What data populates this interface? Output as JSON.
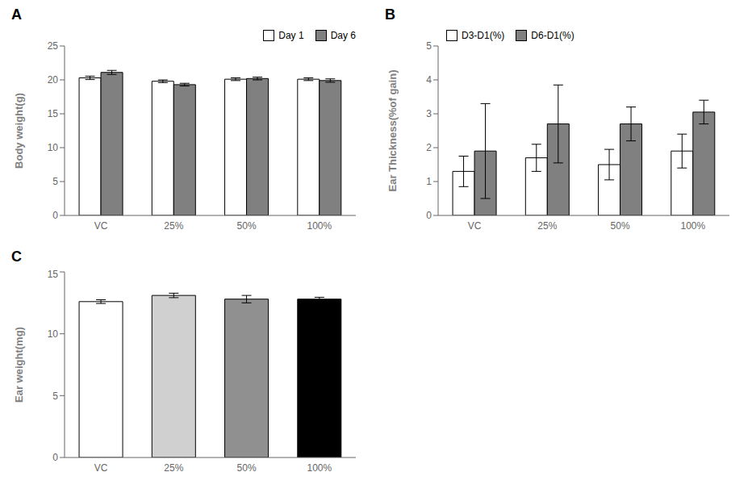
{
  "chart_data": [
    {
      "type": "bar",
      "title": "A",
      "categories": [
        "VC",
        "25%",
        "50%",
        "100%"
      ],
      "series": [
        {
          "name": "Day 1",
          "color": "white",
          "values": [
            20.3,
            19.8,
            20.1,
            20.1
          ],
          "errors": [
            0.25,
            0.2,
            0.2,
            0.2
          ]
        },
        {
          "name": "Day 6",
          "color": "#808080",
          "values": [
            21.1,
            19.3,
            20.2,
            19.9
          ],
          "errors": [
            0.3,
            0.2,
            0.2,
            0.25
          ]
        }
      ],
      "ylabel": "Body weight(g)",
      "ylim": [
        0,
        25
      ],
      "yticks": [
        0,
        5,
        10,
        15,
        20,
        25
      ],
      "legend": "upper right"
    },
    {
      "type": "bar",
      "title": "B",
      "categories": [
        "VC",
        "25%",
        "50%",
        "100%"
      ],
      "series": [
        {
          "name": "D3-D1(%)",
          "color": "white",
          "values": [
            1.3,
            1.7,
            1.5,
            1.9
          ],
          "errors": [
            0.45,
            0.4,
            0.45,
            0.5
          ]
        },
        {
          "name": "D6-D1(%)",
          "color": "#808080",
          "values": [
            1.9,
            2.7,
            2.7,
            3.05
          ],
          "errors": [
            1.4,
            1.15,
            0.5,
            0.35
          ]
        }
      ],
      "ylabel": "Ear Thickness(%of gain)",
      "ylim": [
        0,
        5
      ],
      "yticks": [
        0,
        1,
        2,
        3,
        4,
        5
      ],
      "legend": "upper left"
    },
    {
      "type": "bar",
      "title": "C",
      "categories": [
        "VC",
        "25%",
        "50%",
        "100%"
      ],
      "values": [
        12.6,
        13.1,
        12.8,
        12.8
      ],
      "errors": [
        0.15,
        0.18,
        0.3,
        0.15
      ],
      "colors": [
        "white",
        "#d0d0d0",
        "#909090",
        "#000000"
      ],
      "ylabel": "Ear weight(mg)",
      "ylim": [
        0,
        15
      ],
      "yticks": [
        0,
        5,
        10,
        15
      ]
    }
  ]
}
